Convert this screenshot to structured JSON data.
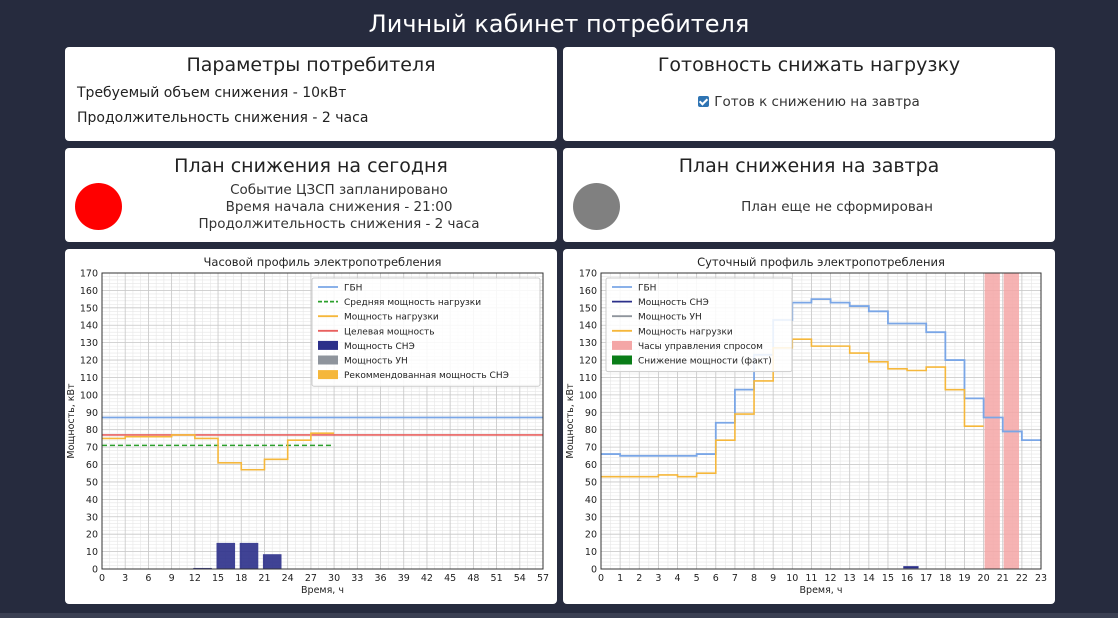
{
  "header": {
    "title": "Личный кабинет потребителя"
  },
  "params": {
    "title": "Параметры потребителя",
    "volume": "Требуемый объем снижения - 10кВт",
    "duration": "Продолжительность снижения - 2 часа"
  },
  "readiness": {
    "title": "Готовность снижать нагрузку",
    "checkbox_label": "Готов к снижению на завтра",
    "checked": true
  },
  "today": {
    "title": "План снижения на сегодня",
    "line1": "Событие ЦЗСП запланировано",
    "line2": "Время начала снижения - 21:00",
    "line3": "Продолжительность снижения - 2 часа",
    "status_color": "#ff0000"
  },
  "tomorrow": {
    "title": "План снижения на завтра",
    "line1": "План еще не сформирован",
    "status_color": "#808080"
  },
  "chart_data": [
    {
      "type": "line",
      "title": "Часовой профиль электропотребления",
      "xlabel": "Время, ч",
      "ylabel": "Мощность, кВт",
      "xlim": [
        0,
        57
      ],
      "ylim": [
        0,
        170
      ],
      "xticks": [
        0,
        3,
        6,
        9,
        12,
        15,
        18,
        21,
        24,
        27,
        30,
        33,
        36,
        39,
        42,
        45,
        48,
        51,
        54,
        57
      ],
      "yticks": [
        0,
        10,
        20,
        30,
        40,
        50,
        60,
        70,
        80,
        90,
        100,
        110,
        120,
        130,
        140,
        150,
        160,
        170
      ],
      "grid": true,
      "legend": "top-right",
      "legend_labels": [
        "ГБН",
        "Средняя мощность нагрузки",
        "Мощность нагрузки",
        "Целевая мощность",
        "Мощность СНЭ",
        "Мощность УН",
        "Рекоммендованная мощность СНЭ"
      ],
      "colors": {
        "gbn": "#7aa6e6",
        "avg": "#2ca02c",
        "load": "#f5b73b",
        "target": "#e8605f",
        "sne": "#2b2f8a",
        "un": "#8e949c",
        "rec": "#f5b73b"
      },
      "series": [
        {
          "name": "ГБН",
          "x": [
            0,
            57
          ],
          "y": [
            87,
            87
          ]
        },
        {
          "name": "Средняя мощность нагрузки",
          "x": [
            0,
            30
          ],
          "y": [
            71,
            71
          ]
        },
        {
          "name": "Мощность нагрузки",
          "step_x": [
            0,
            3,
            6,
            9,
            12,
            15,
            18,
            21,
            24,
            27,
            30
          ],
          "step_y": [
            75,
            76,
            76,
            77,
            75,
            61,
            57,
            63,
            74,
            78
          ]
        },
        {
          "name": "Целевая мощность",
          "x": [
            0,
            57
          ],
          "y": [
            77,
            77
          ]
        }
      ],
      "bars": {
        "name": "Мощность СНЭ",
        "x": [
          13,
          16,
          19,
          22
        ],
        "width": 2.4,
        "values": [
          0.6,
          15,
          15,
          8.5
        ]
      }
    },
    {
      "type": "line",
      "title": "Суточный профиль электропотребления",
      "xlabel": "Время, ч",
      "ylabel": "Мощность, кВт",
      "xlim": [
        0,
        23
      ],
      "ylim": [
        0,
        170
      ],
      "xticks": [
        0,
        1,
        2,
        3,
        4,
        5,
        6,
        7,
        8,
        9,
        10,
        11,
        12,
        13,
        14,
        15,
        16,
        17,
        18,
        19,
        20,
        21,
        22,
        23
      ],
      "yticks": [
        0,
        10,
        20,
        30,
        40,
        50,
        60,
        70,
        80,
        90,
        100,
        110,
        120,
        130,
        140,
        150,
        160,
        170
      ],
      "grid": true,
      "legend": "top-left",
      "legend_labels": [
        "ГБН",
        "Мощность СНЭ",
        "Мощность УН",
        "Мощность нагрузки",
        "Часы управления спросом",
        "Снижение мощности (факт)"
      ],
      "colors": {
        "gbn": "#7aa6e6",
        "sne": "#2b2f8a",
        "un": "#8e949c",
        "load": "#f5b73b",
        "dr": "#f4a6a6",
        "fact": "#0a7d18"
      },
      "series": [
        {
          "name": "ГБН",
          "step_x": [
            0,
            1,
            2,
            3,
            4,
            5,
            6,
            7,
            8,
            9,
            10,
            11,
            12,
            13,
            14,
            15,
            16,
            17,
            18,
            19,
            20,
            21,
            22,
            23
          ],
          "step_y": [
            66,
            65,
            65,
            65,
            65,
            66,
            84,
            103,
            123,
            143,
            153,
            155,
            153,
            151,
            148,
            141,
            141,
            136,
            120,
            98,
            87,
            79,
            74
          ]
        },
        {
          "name": "Мощность нагрузки",
          "step_x": [
            0,
            1,
            2,
            3,
            4,
            5,
            6,
            7,
            8,
            9,
            10,
            11,
            12,
            13,
            14,
            15,
            16,
            17,
            18,
            19,
            20
          ],
          "step_y": [
            53,
            53,
            53,
            54,
            53,
            55,
            74,
            89,
            108,
            127,
            132,
            128,
            128,
            124,
            119,
            115,
            114,
            116,
            103,
            82
          ]
        },
        {
          "name": "Мощность СНЭ",
          "x": [
            15.8,
            16.6
          ],
          "y": [
            1,
            1
          ]
        }
      ],
      "demand_hours": [
        [
          20.05,
          20.85
        ],
        [
          21.05,
          21.85
        ]
      ]
    }
  ]
}
